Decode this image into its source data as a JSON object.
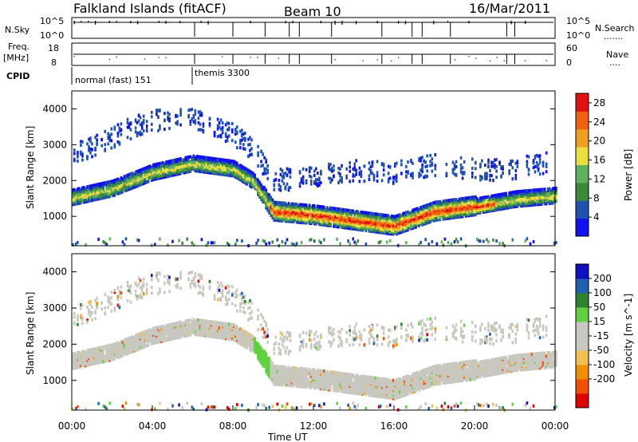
{
  "header": {
    "title": "Falkland Islands (fitACF)",
    "beam": "Beam 10",
    "date": "16/Mar/2011"
  },
  "params": {
    "nsky_label": "N.Sky",
    "nsearch_label": "N.Search",
    "freq_label": "Freq.",
    "freq_unit": "[MHz]",
    "nave_label": "Nave",
    "cpid_label": "CPID",
    "noise_ticks": [
      "10^5",
      "10^0"
    ],
    "freq_ticks": [
      "18",
      "8"
    ],
    "nave_ticks": [
      "60",
      "0"
    ],
    "cpid_segments": [
      {
        "label": "normal (fast) 151",
        "start_hour": 0.0,
        "end_hour": 6.0
      },
      {
        "label": "themis 3300",
        "start_hour": 6.0,
        "end_hour": 24.0
      }
    ]
  },
  "colors": {
    "power": [
      "#1010f0",
      "#2050b0",
      "#3a8a3a",
      "#60b060",
      "#e8e040",
      "#f0a020",
      "#f06010",
      "#e01010"
    ],
    "velocity": [
      "#e00000",
      "#f05000",
      "#f09000",
      "#f0c050",
      "#c8c8c0",
      "#c8c8c0",
      "#60d040",
      "#308030",
      "#2060b0",
      "#1010c0"
    ]
  },
  "chart_data": [
    {
      "type": "heatmap",
      "title": "Power",
      "ylabel": "Slant Range [km]",
      "xlabel": "Time UT",
      "x_ticks": [
        "00:00",
        "04:00",
        "08:00",
        "12:00",
        "16:00",
        "20:00",
        "00:00"
      ],
      "y_ticks": [
        1000,
        2000,
        3000,
        4000
      ],
      "xlim": [
        0,
        24
      ],
      "ylim": [
        180,
        4500
      ],
      "colorbar_label": "Power [dB]",
      "colorbar_ticks": [
        4,
        8,
        12,
        16,
        20,
        24,
        28
      ],
      "colorbar_range": [
        0,
        30
      ],
      "main_band_km": [
        [
          0,
          1450
        ],
        [
          2,
          1700
        ],
        [
          4,
          2150
        ],
        [
          6,
          2400
        ],
        [
          8,
          2250
        ],
        [
          9,
          1900
        ],
        [
          10,
          1050
        ],
        [
          12,
          950
        ],
        [
          14,
          800
        ],
        [
          16,
          650
        ],
        [
          18,
          1050
        ],
        [
          20,
          1200
        ],
        [
          22,
          1400
        ],
        [
          24,
          1500
        ]
      ]
    },
    {
      "type": "heatmap",
      "title": "Velocity",
      "ylabel": "Slant Range [km]",
      "xlabel": "Time UT",
      "x_ticks": [
        "00:00",
        "04:00",
        "08:00",
        "12:00",
        "16:00",
        "20:00",
        "00:00"
      ],
      "y_ticks": [
        1000,
        2000,
        3000,
        4000
      ],
      "xlim": [
        0,
        24
      ],
      "ylim": [
        180,
        4500
      ],
      "colorbar_label": "Velocity [m s^-1]",
      "colorbar_ticks": [
        200,
        100,
        50,
        15,
        -15,
        -50,
        -100,
        -200
      ]
    }
  ]
}
